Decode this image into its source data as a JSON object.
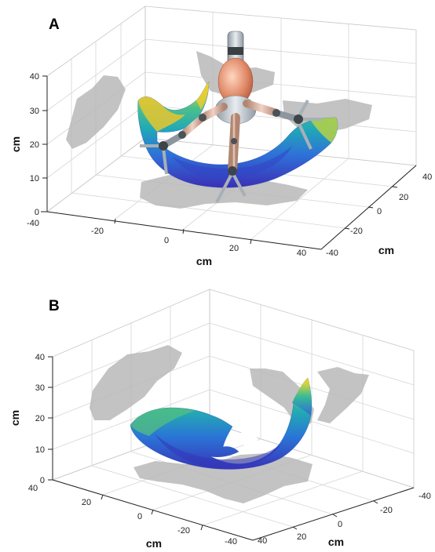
{
  "chart_data": [
    {
      "type": "surface3d",
      "panel": "A",
      "zlabel": "cm",
      "xlabel": "cm",
      "ylabel": "cm",
      "x_ticks": [
        "-40",
        "-20",
        "0",
        "20",
        "40"
      ],
      "y_ticks": [
        "40",
        "20",
        "0",
        "-20",
        "-40"
      ],
      "z_ticks": [
        "0",
        "10",
        "20",
        "30",
        "40"
      ],
      "xlim": [
        -40,
        40
      ],
      "ylim": [
        -40,
        40
      ],
      "zlim": [
        0,
        40
      ],
      "grid": true,
      "colormap": [
        "#3b2fb5",
        "#2f6fd8",
        "#20a8b8",
        "#4cc08a",
        "#c8d540",
        "#f5d22a"
      ]
    },
    {
      "type": "surface3d",
      "panel": "B",
      "zlabel": "cm",
      "xlabel": "cm",
      "ylabel": "cm",
      "x_ticks": [
        "40",
        "20",
        "0",
        "-20",
        "-40"
      ],
      "y_ticks": [
        "-40",
        "-20",
        "0",
        "20",
        "40"
      ],
      "z_ticks": [
        "0",
        "10",
        "20",
        "30",
        "40"
      ],
      "xlim": [
        -40,
        40
      ],
      "ylim": [
        -40,
        40
      ],
      "zlim": [
        0,
        40
      ],
      "grid": true,
      "colormap": [
        "#3b2fb5",
        "#2f6fd8",
        "#20a8b8",
        "#4cc08a",
        "#c8d540",
        "#f5d22a"
      ]
    }
  ]
}
